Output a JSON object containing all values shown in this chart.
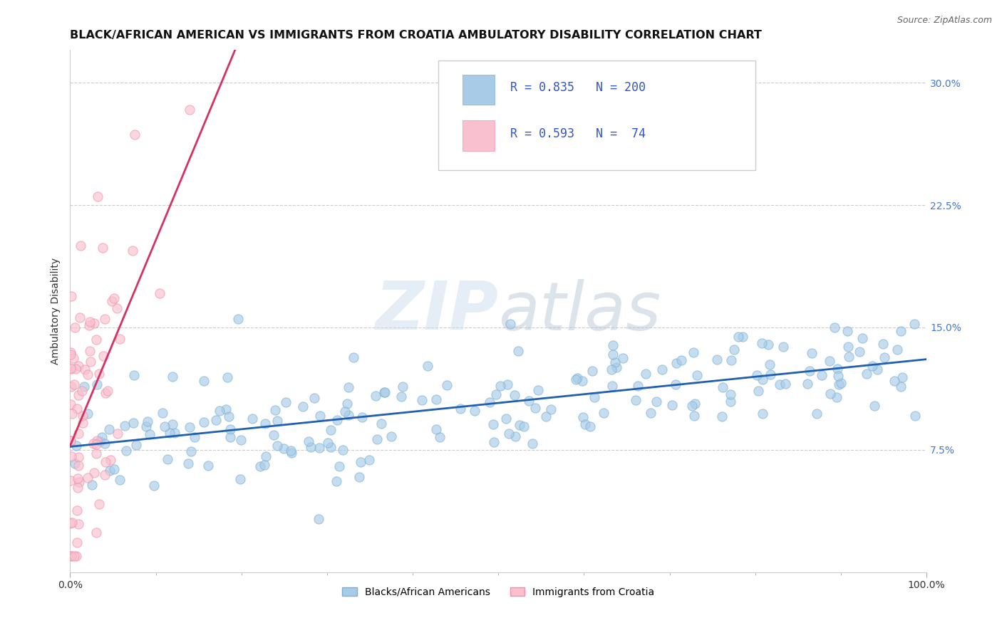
{
  "title": "BLACK/AFRICAN AMERICAN VS IMMIGRANTS FROM CROATIA AMBULATORY DISABILITY CORRELATION CHART",
  "source_text": "Source: ZipAtlas.com",
  "ylabel": "Ambulatory Disability",
  "watermark_zip": "ZIP",
  "watermark_atlas": "atlas",
  "xlim": [
    0,
    1.0
  ],
  "ylim": [
    0,
    0.32
  ],
  "yticks": [
    0.075,
    0.15,
    0.225,
    0.3
  ],
  "ytick_labels": [
    "7.5%",
    "15.0%",
    "22.5%",
    "30.0%"
  ],
  "xticks": [
    0.0,
    1.0
  ],
  "xtick_labels": [
    "0.0%",
    "100.0%"
  ],
  "blue_R": 0.835,
  "blue_N": 200,
  "pink_R": 0.593,
  "pink_N": 74,
  "blue_fill_color": "#a8cce8",
  "blue_edge_color": "#7ab0d4",
  "pink_fill_color": "#f9c0cf",
  "pink_edge_color": "#f090aa",
  "blue_line_color": "#2060b0",
  "pink_line_color": "#d83060",
  "legend_label_blue": "Blacks/African Americans",
  "legend_label_pink": "Immigrants from Croatia",
  "title_fontsize": 11.5,
  "axis_label_fontsize": 10,
  "tick_fontsize": 10,
  "legend_fontsize": 10,
  "blue_seed": 42,
  "pink_seed": 99
}
